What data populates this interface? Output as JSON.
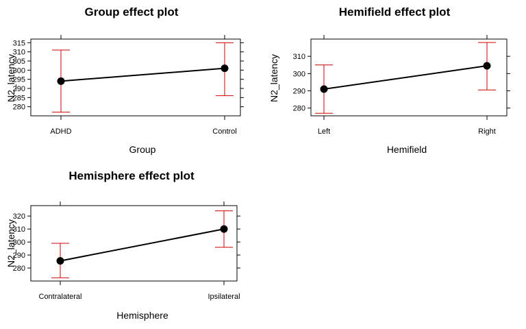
{
  "chart_data": [
    {
      "type": "line",
      "title": "Group effect plot",
      "xlabel": "Group",
      "ylabel": "N2_latency",
      "categories": [
        "ADHD",
        "Control"
      ],
      "values": [
        294,
        301
      ],
      "ci_lower": [
        277,
        286
      ],
      "ci_upper": [
        311,
        315
      ],
      "yticks": [
        280,
        285,
        290,
        295,
        300,
        305,
        310,
        315
      ],
      "ylim": [
        275,
        317
      ],
      "grid": false,
      "error_bar_color": "#cc0000"
    },
    {
      "type": "line",
      "title": "Hemifield effect plot",
      "xlabel": "Hemifield",
      "ylabel": "N2_latency",
      "categories": [
        "Left",
        "Right"
      ],
      "values": [
        291,
        304.5
      ],
      "ci_lower": [
        277,
        290.5
      ],
      "ci_upper": [
        305,
        318
      ],
      "yticks": [
        280,
        290,
        300,
        310
      ],
      "ylim": [
        275.5,
        320
      ],
      "grid": false,
      "error_bar_color": "#cc0000"
    },
    {
      "type": "line",
      "title": "Hemisphere effect plot",
      "xlabel": "Hemisphere",
      "ylabel": "N2_latency",
      "categories": [
        "Contralateral",
        "Ipsilateral"
      ],
      "values": [
        285.5,
        310
      ],
      "ci_lower": [
        272.5,
        296
      ],
      "ci_upper": [
        299,
        324
      ],
      "yticks": [
        280,
        290,
        300,
        310,
        320
      ],
      "ylim": [
        270,
        328
      ],
      "grid": false,
      "error_bar_color": "#cc0000"
    }
  ]
}
